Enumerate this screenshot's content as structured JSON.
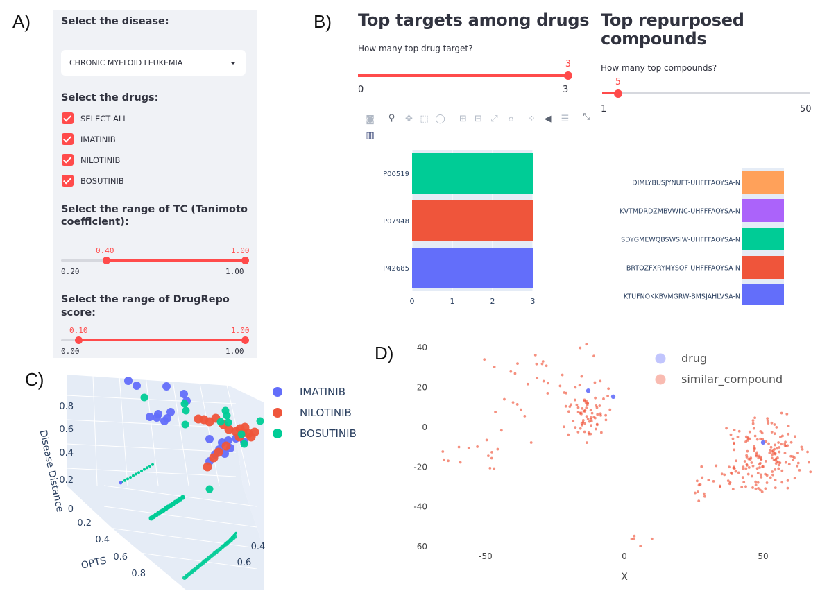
{
  "labels": {
    "a": "A)",
    "b": "B)",
    "c": "C)",
    "d": "D)"
  },
  "sidebar": {
    "disease_heading": "Select the disease:",
    "disease_value": "CHRONIC MYELOID LEUKEMIA",
    "drugs_heading": "Select the drugs:",
    "drugs": [
      {
        "label": "SELECT ALL",
        "checked": true
      },
      {
        "label": "IMATINIB",
        "checked": true
      },
      {
        "label": "NILOTINIB",
        "checked": true
      },
      {
        "label": "BOSUTINIB",
        "checked": true
      }
    ],
    "tc_heading_line1": "Select the range of TC (Tanimoto",
    "tc_heading_line2": "coefficient):",
    "tc_slider": {
      "min": "0.20",
      "max": "1.00",
      "low": "0.40",
      "high": "1.00"
    },
    "drugrepo_heading": "Select the range of DrugRepo score:",
    "drugrepo_slider": {
      "min": "0.00",
      "max": "1.00",
      "low": "0.10",
      "high": "1.00"
    }
  },
  "targets": {
    "title": "Top targets among drugs",
    "slider_label": "How many top drug target?",
    "slider": {
      "min": "0",
      "max": "3",
      "value": "3"
    },
    "toolbar_icons": [
      "camera-icon",
      "zoom-icon",
      "pan-icon",
      "box-select-icon",
      "lasso-icon",
      "zoom-in-icon",
      "zoom-out-icon",
      "autoscale-icon",
      "home-icon",
      "spike-icon",
      "hover-closest-icon",
      "hover-compare-icon",
      "fullscreen-icon",
      "plotly-logo-icon"
    ]
  },
  "compounds": {
    "title_line1": "Top repurposed",
    "title_line2": "compounds",
    "slider_label": "How many top compounds?",
    "slider": {
      "min": "1",
      "max": "50",
      "value": "5"
    }
  },
  "chart_data": [
    {
      "type": "bar",
      "orientation": "horizontal",
      "categories": [
        "P00519",
        "P07948",
        "P42685"
      ],
      "values": [
        3,
        3,
        3
      ],
      "colors": [
        "#00cc96",
        "#ef553b",
        "#636efa"
      ],
      "xticks": [
        "0",
        "1",
        "2",
        "3"
      ],
      "xlim": [
        0,
        3
      ]
    },
    {
      "type": "bar",
      "orientation": "horizontal",
      "categories": [
        "DIMLYBUSJYNUFT-UHFFFAOYSA-N",
        "KVTMDRDZMBVWNC-UHFFFAOYSA-N",
        "SDYGMEWQBSWSIW-UHFFFAOYSA-N",
        "BRTOZFXRYMYSOF-UHFFFAOYSA-N",
        "KTUFNOKKBVMGRW-BMSJAHLVSA-N"
      ],
      "values": [
        1,
        1,
        1,
        1,
        1
      ],
      "colors": [
        "#ffa15a",
        "#ab63fa",
        "#00cc96",
        "#ef553b",
        "#636efa"
      ]
    },
    {
      "type": "scatter3d",
      "axes": {
        "y_label": "Disease Distance",
        "x_label": "OPTS"
      },
      "zticks": [
        "0",
        "0.2",
        "0.4",
        "0.6",
        "0.8"
      ],
      "xticks": [
        "0.2",
        "0.4",
        "0.6",
        "0.8"
      ],
      "yticks": [
        "0.4",
        "0.6"
      ],
      "legend": [
        "IMATINIB",
        "NILOTINIB",
        "BOSUTINIB"
      ],
      "colors": {
        "IMATINIB": "#636efa",
        "NILOTINIB": "#ef553b",
        "BOSUTINIB": "#00cc96"
      }
    },
    {
      "type": "scatter",
      "xlabel": "X",
      "xticks": [
        -50,
        0,
        50
      ],
      "yticks": [
        40,
        20,
        0,
        -20,
        -40,
        -60
      ],
      "xlim": [
        -70,
        70
      ],
      "ylim": [
        -68,
        47
      ],
      "legend": [
        "drug",
        "similar_compound"
      ],
      "colors": {
        "drug": "#636efa",
        "similar_compound": "#ef553b"
      },
      "drug_points": [
        [
          -13,
          18
        ],
        [
          -4,
          15
        ],
        [
          50,
          -8
        ]
      ]
    }
  ]
}
